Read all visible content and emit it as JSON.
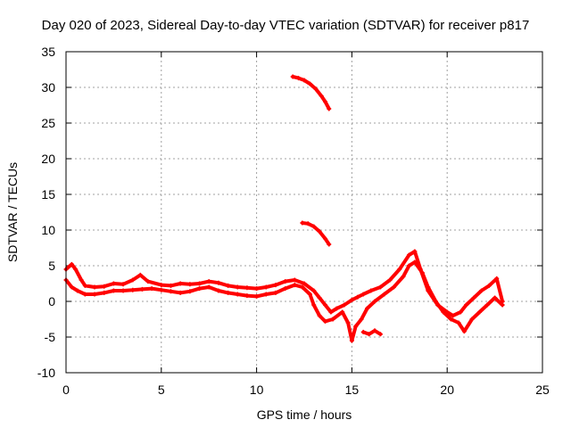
{
  "chart_data": {
    "type": "scatter",
    "title": "Day 020 of 2023, Sidereal Day-to-day VTEC variation (SDTVAR) for receiver p817",
    "xlabel": "GPS time / hours",
    "ylabel": "SDTVAR / TECUs",
    "xlim": [
      0,
      25
    ],
    "ylim": [
      -10,
      35
    ],
    "xticks": [
      0,
      5,
      10,
      15,
      20,
      25
    ],
    "yticks": [
      -10,
      -5,
      0,
      5,
      10,
      15,
      20,
      25,
      30,
      35
    ],
    "grid": true,
    "marker": "plus",
    "color": "#ff0000",
    "series": [
      {
        "name": "main-band-upper",
        "x": [
          0,
          0.3,
          0.5,
          0.8,
          1,
          1.5,
          2,
          2.5,
          3,
          3.5,
          3.9,
          4.3,
          5,
          5.5,
          6,
          6.5,
          7,
          7.5,
          8,
          8.5,
          9,
          9.5,
          10,
          10.5,
          11,
          11.5,
          12,
          12.5,
          13,
          13.3,
          13.6,
          13.9,
          14.2,
          14.6,
          15,
          15.3,
          15.6,
          16,
          16.5,
          17,
          17.5,
          18,
          18.3,
          18.6,
          19,
          19.5,
          20,
          20.3,
          20.7,
          21,
          21.4,
          21.8,
          22.2,
          22.6,
          22.9
        ],
        "y": [
          4.5,
          5.2,
          4.5,
          3,
          2.2,
          2,
          2.1,
          2.5,
          2.4,
          3,
          3.7,
          2.8,
          2.3,
          2.2,
          2.5,
          2.4,
          2.5,
          2.8,
          2.6,
          2.2,
          2,
          1.9,
          1.8,
          2,
          2.3,
          2.8,
          3,
          2.5,
          1.5,
          0.5,
          -0.5,
          -1.5,
          -1,
          -0.5,
          0.2,
          0.6,
          1,
          1.5,
          2,
          3,
          4.5,
          6.5,
          7,
          4.5,
          1.5,
          -0.5,
          -1.5,
          -2,
          -1.5,
          -0.5,
          0.5,
          1.5,
          2.2,
          3.2,
          0
        ]
      },
      {
        "name": "main-band-lower",
        "x": [
          0,
          0.3,
          0.6,
          1,
          1.5,
          2,
          2.5,
          3,
          3.5,
          4,
          4.5,
          5,
          5.5,
          6,
          6.5,
          7,
          7.5,
          8,
          8.5,
          9,
          9.5,
          10,
          10.5,
          11,
          11.5,
          12,
          12.4,
          12.8,
          13,
          13.3,
          13.6,
          14,
          14.5,
          14.8,
          15,
          15.2,
          15.5,
          15.8,
          16.2,
          16.7,
          17.2,
          17.7,
          18,
          18.3,
          18.7,
          19,
          19.4,
          19.8,
          20.2,
          20.6,
          20.9,
          21.3,
          21.7,
          22.1,
          22.5,
          22.9
        ],
        "y": [
          3,
          2,
          1.5,
          1,
          1,
          1.2,
          1.5,
          1.5,
          1.6,
          1.7,
          1.8,
          1.6,
          1.4,
          1.2,
          1.4,
          1.8,
          2,
          1.5,
          1.2,
          1,
          0.8,
          0.7,
          1,
          1.2,
          1.8,
          2.3,
          2,
          1,
          -0.5,
          -2,
          -2.8,
          -2.5,
          -1.5,
          -3,
          -5.5,
          -3.5,
          -2.5,
          -1,
          0,
          1,
          2,
          3.5,
          5,
          5.5,
          4,
          2,
          0,
          -1.5,
          -2.5,
          -3,
          -4.2,
          -2.5,
          -1.5,
          -0.5,
          0.5,
          -0.5
        ]
      },
      {
        "name": "short-dip-segment",
        "x": [
          15.6,
          15.9,
          16.2,
          16.5
        ],
        "y": [
          -4.3,
          -4.6,
          -4.1,
          -4.6
        ]
      },
      {
        "name": "upper-arc-30",
        "x": [
          11.9,
          12.2,
          12.5,
          12.8,
          13.1,
          13.4,
          13.6,
          13.8
        ],
        "y": [
          31.5,
          31.3,
          31,
          30.5,
          29.8,
          28.8,
          28,
          27
        ]
      },
      {
        "name": "upper-arc-10",
        "x": [
          12.4,
          12.7,
          13,
          13.3,
          13.6,
          13.8
        ],
        "y": [
          11,
          10.9,
          10.5,
          9.8,
          8.8,
          8
        ]
      }
    ]
  }
}
